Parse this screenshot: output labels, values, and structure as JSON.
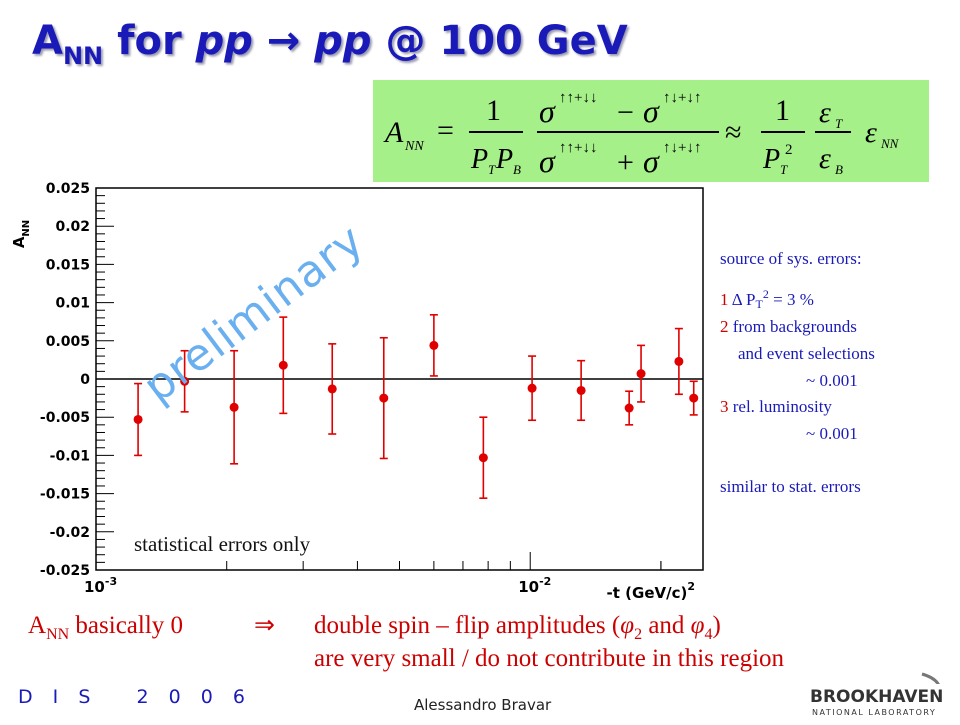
{
  "title": {
    "a": "A",
    "sub": "NN",
    "text1": " for ",
    "pp1": "pp",
    "arrow": " → ",
    "pp2": "pp",
    "rest": " @ 100 GeV"
  },
  "formula": {
    "lhs": "A",
    "lhs_sub": "NN",
    "one": "1",
    "pt": "P",
    "pt_sub": "T",
    "pb": "P",
    "pb_sub": "B",
    "sigma": "σ",
    "up_up": "↑↑+↓↓",
    "up_down": "↑↓+↓↑",
    "minus": "−",
    "plus": "+",
    "approx": "≈",
    "pt2": "P",
    "pt2_sub": "T",
    "pt2_sup": "2",
    "eps": "ε",
    "eps_t": "T",
    "eps_b": "B",
    "eps_nn": "NN",
    "equals": "="
  },
  "chart_data": {
    "type": "scatter",
    "xscale": "log",
    "xlim": [
      0.001,
      0.025
    ],
    "ylim": [
      -0.025,
      0.025
    ],
    "ylabel": "A_NN",
    "ylabel_main": "A",
    "ylabel_sub": "NN",
    "xlabel": "-t (GeV/c)",
    "xlabel_sup": "2",
    "yticks": [
      -0.025,
      -0.02,
      -0.015,
      -0.01,
      -0.005,
      0,
      0.005,
      0.01,
      0.015,
      0.02,
      0.025
    ],
    "ytick_labels": [
      "-0.025",
      "-0.02",
      "-0.015",
      "-0.01",
      "-0.005",
      "0",
      "0.005",
      "0.01",
      "0.015",
      "0.02",
      "0.025"
    ],
    "xtick_labels": [
      {
        "x": 0.001,
        "base": "10",
        "exp": "-3"
      },
      {
        "x": 0.01,
        "base": "10",
        "exp": "-2"
      }
    ],
    "zero_line": true,
    "points": [
      {
        "x": 0.00125,
        "y": -0.0053,
        "err": 0.0047
      },
      {
        "x": 0.0016,
        "y": -0.0003,
        "err": 0.004
      },
      {
        "x": 0.00208,
        "y": -0.0037,
        "err": 0.0074
      },
      {
        "x": 0.0027,
        "y": 0.0018,
        "err": 0.0063
      },
      {
        "x": 0.0035,
        "y": -0.0013,
        "err": 0.0059
      },
      {
        "x": 0.0046,
        "y": -0.0025,
        "err": 0.0079
      },
      {
        "x": 0.006,
        "y": 0.0044,
        "err": 0.004
      },
      {
        "x": 0.0078,
        "y": -0.0103,
        "err": 0.0053
      },
      {
        "x": 0.0101,
        "y": -0.0012,
        "err": 0.0042
      },
      {
        "x": 0.0131,
        "y": -0.0015,
        "err": 0.0039
      },
      {
        "x": 0.0169,
        "y": -0.0038,
        "err": 0.0022
      },
      {
        "x": 0.018,
        "y": 0.0007,
        "err": 0.0037
      },
      {
        "x": 0.022,
        "y": 0.0023,
        "err": 0.0043
      },
      {
        "x": 0.0238,
        "y": -0.0025,
        "err": 0.0022
      }
    ],
    "marker_color": "#e00000",
    "annotation": "statistical errors only",
    "watermark": "preliminary"
  },
  "sys_errors": {
    "heading": "source of sys. errors:",
    "items": [
      {
        "num": "1",
        "delta": " Δ P",
        "sub": "T",
        "sup": "2",
        "text": " = 3 %"
      },
      {
        "num": "2",
        "text": " from backgrounds"
      },
      {
        "text": "and event selections"
      },
      {
        "text": "~ 0.001"
      },
      {
        "num": "3",
        "text": " rel. luminosity"
      },
      {
        "text": "~ 0.001"
      }
    ],
    "footer": "similar to stat. errors"
  },
  "conclusion": {
    "a": "A",
    "sub": "NN",
    "rest": " basically 0",
    "implies": "⇒",
    "line1": "double spin – flip amplitudes (",
    "phi": "φ",
    "phi2": "2",
    "and": " and ",
    "phi4": "4",
    "close": ")",
    "line2": "are very small / do not contribute in this region"
  },
  "footer": {
    "conf": "D I S   2 0 0 6",
    "author": "Alessandro Bravar",
    "logo_line1": "BROOKHAVEN",
    "logo_line2": "NATIONAL LABORATORY"
  },
  "colors": {
    "title": "#1a1ab8",
    "formula_bg": "#a6f08a",
    "red": "#cc0000",
    "prelim": "#6ab0f0"
  }
}
